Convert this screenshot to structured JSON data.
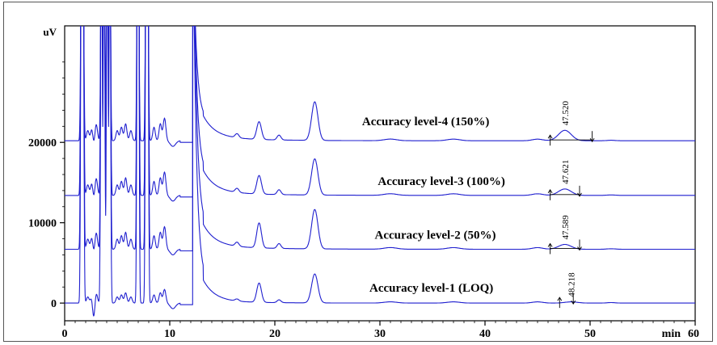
{
  "chart_data": {
    "type": "line",
    "ylabel": "uV",
    "xlabel": "min",
    "xlim": [
      0,
      60
    ],
    "ylim": [
      -2200,
      34500
    ],
    "x_ticks": [
      0,
      10,
      20,
      30,
      40,
      50,
      60
    ],
    "x_tick_labels": [
      "0",
      "10",
      "20",
      "30",
      "40",
      "50",
      "60"
    ],
    "y_ticks": [
      0,
      10000,
      20000
    ],
    "y_tick_labels": [
      "0",
      "10000",
      "20000"
    ],
    "line_color": "#1f1fcf",
    "grid": false,
    "series": [
      {
        "name": "Accuracy level-1 (LOQ)",
        "label": "Accuracy level-1 (LOQ)",
        "baseline": 0,
        "x": [
          0,
          1.6,
          3.7,
          4.3,
          7.0,
          7.9,
          9.5,
          12.7,
          16.4,
          18.5,
          20.4,
          23.8,
          31.0,
          37.0,
          45.0,
          48.2,
          60.0
        ],
        "y": [
          0,
          30000,
          30000,
          30000,
          30000,
          30000,
          1700,
          30000,
          250,
          2400,
          350,
          3600,
          150,
          150,
          150,
          150,
          0
        ],
        "peak_rt": "48.218"
      },
      {
        "name": "Accuracy level-2 (50%)",
        "label": "Accuracy level-2 (50%)",
        "baseline": 6700,
        "x": [
          0,
          1.6,
          3.7,
          4.3,
          7.0,
          7.9,
          9.5,
          12.7,
          16.4,
          18.5,
          20.4,
          23.8,
          31.0,
          37.0,
          45.0,
          47.6,
          60.0
        ],
        "y": [
          6700,
          36000,
          36000,
          36000,
          36000,
          36000,
          9500,
          36000,
          7200,
          9800,
          7300,
          11600,
          6900,
          6900,
          6900,
          7300,
          6700
        ],
        "peak_rt": "47.589"
      },
      {
        "name": "Accuracy level-3 (100%)",
        "label": "Accuracy level-3 (100%)",
        "baseline": 13400,
        "x": [
          0,
          1.6,
          3.7,
          4.3,
          7.0,
          7.9,
          9.5,
          12.7,
          16.4,
          18.5,
          20.4,
          23.8,
          31.0,
          37.0,
          45.0,
          47.6,
          60.0
        ],
        "y": [
          13400,
          36000,
          36000,
          36000,
          36000,
          36000,
          16300,
          36000,
          13900,
          15700,
          14000,
          17900,
          13600,
          13600,
          13600,
          14200,
          13400
        ],
        "peak_rt": "47.621"
      },
      {
        "name": "Accuracy level-4 (150%)",
        "label": "Accuracy level-4 (150%)",
        "baseline": 20200,
        "x": [
          0,
          1.6,
          3.7,
          4.3,
          7.0,
          7.9,
          9.5,
          12.7,
          16.4,
          18.5,
          20.4,
          23.8,
          31.0,
          37.0,
          45.0,
          47.6,
          60.0
        ],
        "y": [
          20200,
          36000,
          36000,
          36000,
          36000,
          36000,
          23000,
          36000,
          20700,
          22400,
          20800,
          25000,
          20400,
          20400,
          20400,
          21500,
          20200
        ],
        "peak_rt": "47.520"
      }
    ]
  }
}
